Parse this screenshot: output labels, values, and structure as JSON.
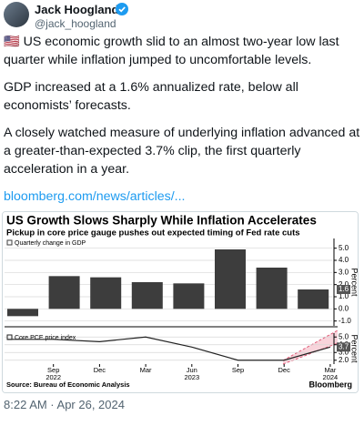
{
  "tweet": {
    "author_name": "Jack Hoogland",
    "handle": "@jack_hoogland",
    "paragraphs": [
      "🇺🇸 US economic growth slid to an almost two-year low last quarter while inflation jumped to uncomfortable levels.",
      "GDP increased at a 1.6% annualized rate, below all economists’ forecasts.",
      "A closely watched measure of underlying inflation advanced at a greater-than-expected 3.7% clip, the first quarterly acceleration in a year."
    ],
    "link": "bloomberg.com/news/articles/...",
    "timestamp": "8:22 AM · Apr 26, 2024"
  },
  "chart_frame": {
    "title": "US Growth Slows Sharply While Inflation Accelerates",
    "subtitle": "Pickup in core price gauge pushes out expected timing of Fed rate cuts",
    "source": "Source: Bureau of Economic Analysis",
    "brand": "Bloomberg"
  },
  "chart_data": [
    {
      "type": "bar",
      "legend": "Quarterly change in GDP",
      "y_label": "Percent",
      "color": "#3d3d3d",
      "values": [
        -0.6,
        2.7,
        2.6,
        2.2,
        2.1,
        4.9,
        3.4,
        1.6
      ],
      "value_labels": [
        null,
        null,
        null,
        null,
        null,
        null,
        null,
        "1.6"
      ],
      "ylim": [
        -1.4,
        5.8
      ],
      "yticks": [
        {
          "value": -1,
          "label": "-1.0"
        },
        {
          "value": 0,
          "label": "0.0"
        },
        {
          "value": 1,
          "label": "1.0"
        },
        {
          "value": 2,
          "label": "2.0"
        },
        {
          "value": 3,
          "label": "3.0"
        },
        {
          "value": 4,
          "label": "4.0"
        },
        {
          "value": 5,
          "label": "5.0"
        }
      ],
      "grid": true
    },
    {
      "type": "line",
      "legend": "Core PCE price index",
      "y_label": "Percent",
      "color": "#222222",
      "categories": [
        null,
        "Sep",
        "Dec",
        "Mar",
        "Jun",
        "Sep",
        "Dec",
        "Mar"
      ],
      "years": [
        null,
        "2022",
        null,
        null,
        "2023",
        null,
        null,
        "2024"
      ],
      "values": [
        4.7,
        4.7,
        4.4,
        5.0,
        3.7,
        2.0,
        2.0,
        3.7
      ],
      "value_labels": [
        null,
        null,
        null,
        null,
        null,
        null,
        null,
        "3.7"
      ],
      "ylim": [
        1.5,
        5.5
      ],
      "yticks": [
        {
          "value": 2,
          "label": "2.0"
        },
        {
          "value": 3,
          "label": "3.0"
        },
        {
          "value": 4,
          "label": "4.0"
        },
        {
          "value": 5,
          "label": "5.0"
        }
      ],
      "grid": true
    }
  ]
}
